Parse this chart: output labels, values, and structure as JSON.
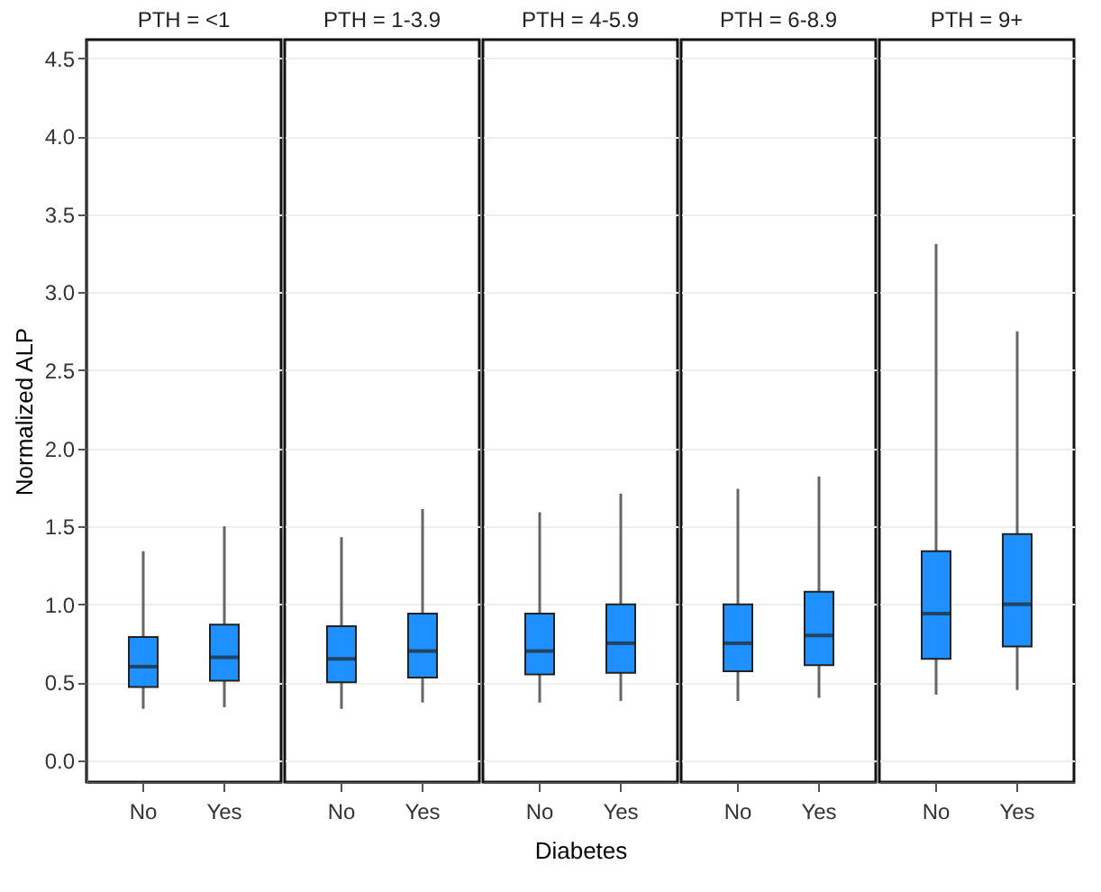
{
  "chart_data": [
    {
      "type": "box",
      "title": "PTH = <1",
      "ylabel": "Normalized ALP",
      "categories": [
        "No",
        "Yes"
      ],
      "color": "#1e90ff",
      "ylim": [
        -0.14,
        4.62
      ],
      "yticks": [
        {
          "value": 0,
          "label": "0.0"
        },
        0.5,
        {
          "value": 1,
          "label": "1.0"
        },
        1.5,
        {
          "value": 2,
          "label": "2.0"
        },
        2.5,
        {
          "value": 3,
          "label": "3.0"
        },
        3.5,
        {
          "value": 4,
          "label": "4.0"
        },
        4.5
      ],
      "grid": "y",
      "boxes": [
        {
          "low": 0.33,
          "q1": 0.47,
          "median": 0.6,
          "q3": 0.79,
          "high": 1.34
        },
        {
          "low": 0.34,
          "q1": 0.51,
          "median": 0.66,
          "q3": 0.87,
          "high": 1.5
        }
      ]
    },
    {
      "type": "box",
      "title": "PTH = 1-3.9",
      "categories": [
        "No",
        "Yes"
      ],
      "color": "#1e90ff",
      "ylim": [
        -0.14,
        4.62
      ],
      "yticks": [
        0,
        0.5,
        1,
        1.5,
        2,
        2.5,
        3,
        3.5,
        4,
        4.5
      ],
      "grid": "y",
      "tick_labels": "x",
      "boxes": [
        {
          "low": 0.33,
          "q1": 0.5,
          "median": 0.65,
          "q3": 0.86,
          "high": 1.43
        },
        {
          "low": 0.37,
          "q1": 0.53,
          "median": 0.7,
          "q3": 0.94,
          "high": 1.61
        }
      ]
    },
    {
      "type": "box",
      "title": "PTH = 4-5.9",
      "xlabel": "Diabetes",
      "categories": [
        "No",
        "Yes"
      ],
      "color": "#1e90ff",
      "ylim": [
        -0.14,
        4.62
      ],
      "yticks": [
        0,
        0.5,
        1,
        1.5,
        2,
        2.5,
        3,
        3.5,
        4,
        4.5
      ],
      "grid": "y",
      "tick_labels": "x",
      "boxes": [
        {
          "low": 0.37,
          "q1": 0.55,
          "median": 0.7,
          "q3": 0.94,
          "high": 1.59
        },
        {
          "low": 0.38,
          "q1": 0.56,
          "median": 0.75,
          "q3": 1.0,
          "high": 1.71
        }
      ]
    },
    {
      "type": "box",
      "title": "PTH = 6-8.9",
      "categories": [
        "No",
        "Yes"
      ],
      "color": "#1e90ff",
      "ylim": [
        -0.14,
        4.62
      ],
      "yticks": [
        0,
        0.5,
        1,
        1.5,
        2,
        2.5,
        3,
        3.5,
        4,
        4.5
      ],
      "grid": "y",
      "tick_labels": "x",
      "boxes": [
        {
          "low": 0.38,
          "q1": 0.57,
          "median": 0.75,
          "q3": 1.0,
          "high": 1.74
        },
        {
          "low": 0.4,
          "q1": 0.61,
          "median": 0.8,
          "q3": 1.08,
          "high": 1.82
        }
      ]
    },
    {
      "type": "box",
      "title": "PTH = 9+",
      "categories": [
        "No",
        "Yes"
      ],
      "color": "#1e90ff",
      "ylim": [
        -0.14,
        4.62
      ],
      "yticks": [
        0,
        0.5,
        1,
        1.5,
        2,
        2.5,
        3,
        3.5,
        4,
        4.5
      ],
      "grid": "y",
      "tick_labels": "x",
      "boxes": [
        {
          "low": 0.42,
          "q1": 0.65,
          "median": 0.94,
          "q3": 1.34,
          "high": 3.31
        },
        {
          "low": 0.45,
          "q1": 0.73,
          "median": 1.0,
          "q3": 1.45,
          "high": 2.75
        }
      ]
    }
  ]
}
